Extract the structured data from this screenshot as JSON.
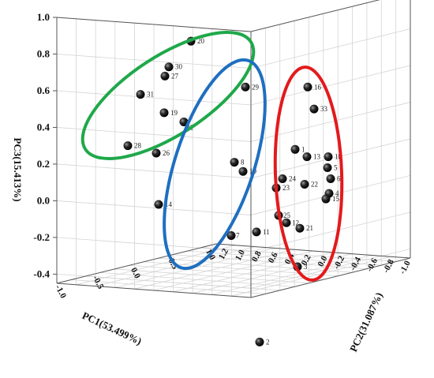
{
  "chart_data": {
    "type": "scatter",
    "axes": {
      "x": {
        "label": "PC1(53.499%)",
        "ticks": [
          "-1.0",
          "-0.5",
          "0.0",
          "0.5",
          "1.0"
        ]
      },
      "y": {
        "label": "PC2(31.087%)",
        "ticks": [
          "-1.0",
          "-0.8",
          "-0.6",
          "-0.4",
          "-0.2",
          "0.0",
          "0.2",
          "0.4",
          "0.6",
          "0.8",
          "1.0",
          "1.2"
        ]
      },
      "z": {
        "label": "PC3(15.413%)",
        "ticks": [
          "-0.4",
          "-0.2",
          "0.0",
          "0.2",
          "0.4",
          "0.6",
          "0.8",
          "1.0"
        ],
        "range": [
          -0.45,
          1.0
        ]
      }
    },
    "grid": true,
    "points": [
      {
        "label": "20",
        "z": 0.92
      },
      {
        "label": "30",
        "z": 0.78
      },
      {
        "label": "27",
        "z": 0.73
      },
      {
        "label": "31",
        "z": 0.63
      },
      {
        "label": "19",
        "z": 0.53
      },
      {
        "label": "32",
        "z": 0.48
      },
      {
        "label": "28",
        "z": 0.35
      },
      {
        "label": "26",
        "z": 0.31
      },
      {
        "label": "14",
        "z": 0.03
      },
      {
        "label": "29",
        "z": 0.67
      },
      {
        "label": "8",
        "z": 0.26
      },
      {
        "label": "10",
        "z": 0.21
      },
      {
        "label": "11",
        "z": -0.12
      },
      {
        "label": "16",
        "z": 0.67
      },
      {
        "label": "33",
        "z": 0.55
      },
      {
        "label": "1",
        "z": 0.33
      },
      {
        "label": "13",
        "z": 0.29
      },
      {
        "label": "18",
        "z": 0.29
      },
      {
        "label": "5",
        "z": 0.23
      },
      {
        "label": "6",
        "z": 0.17
      },
      {
        "label": "24",
        "z": 0.17
      },
      {
        "label": "23",
        "z": 0.12
      },
      {
        "label": "22",
        "z": 0.14
      },
      {
        "label": "4",
        "z": 0.09
      },
      {
        "label": "15",
        "z": 0.06
      },
      {
        "label": "25",
        "z": -0.03
      },
      {
        "label": "12",
        "z": -0.07
      },
      {
        "label": "21",
        "z": -0.1
      },
      {
        "label": "3",
        "z": -0.31
      },
      {
        "label": "7",
        "z": -0.14
      },
      {
        "label": "2",
        "z": -0.72
      }
    ],
    "groups": [
      {
        "color": "#1fa84a",
        "members": [
          "20",
          "30",
          "27",
          "31",
          "19",
          "32",
          "28",
          "26"
        ]
      },
      {
        "color": "#1f6fc0",
        "members": [
          "29",
          "8",
          "10",
          "14",
          "11",
          "7"
        ]
      },
      {
        "color": "#e31a1c",
        "members": [
          "16",
          "33",
          "1",
          "13",
          "18",
          "5",
          "6",
          "24",
          "23",
          "22",
          "4",
          "15",
          "25",
          "12",
          "21",
          "3"
        ]
      }
    ]
  }
}
